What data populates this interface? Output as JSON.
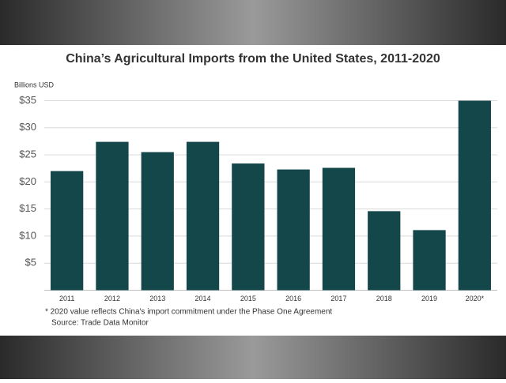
{
  "chart_data": {
    "type": "bar",
    "title": "China’s Agricultural Imports from the United States, 2011-2020",
    "y_axis_label": "Billions USD",
    "categories": [
      "2011",
      "2012",
      "2013",
      "2014",
      "2015",
      "2016",
      "2017",
      "2018",
      "2019",
      "2020*"
    ],
    "values": [
      22,
      27.4,
      25.5,
      27.4,
      23.4,
      22.3,
      22.6,
      14.6,
      11.1,
      35
    ],
    "color": "#13474a",
    "ylim": [
      0,
      35
    ],
    "yticks": [
      {
        "value": 5,
        "label": "$5"
      },
      {
        "value": 10,
        "label": "$10"
      },
      {
        "value": 15,
        "label": "$15"
      },
      {
        "value": 20,
        "label": "$20"
      },
      {
        "value": 25,
        "label": "$25"
      },
      {
        "value": 30,
        "label": "$30"
      },
      {
        "value": 35,
        "label": "$35"
      }
    ],
    "grid": true,
    "footnotes": [
      "* 2020 value reflects China's import commitment under the Phase One Agreement",
      "Source: Trade Data Monitor"
    ]
  }
}
